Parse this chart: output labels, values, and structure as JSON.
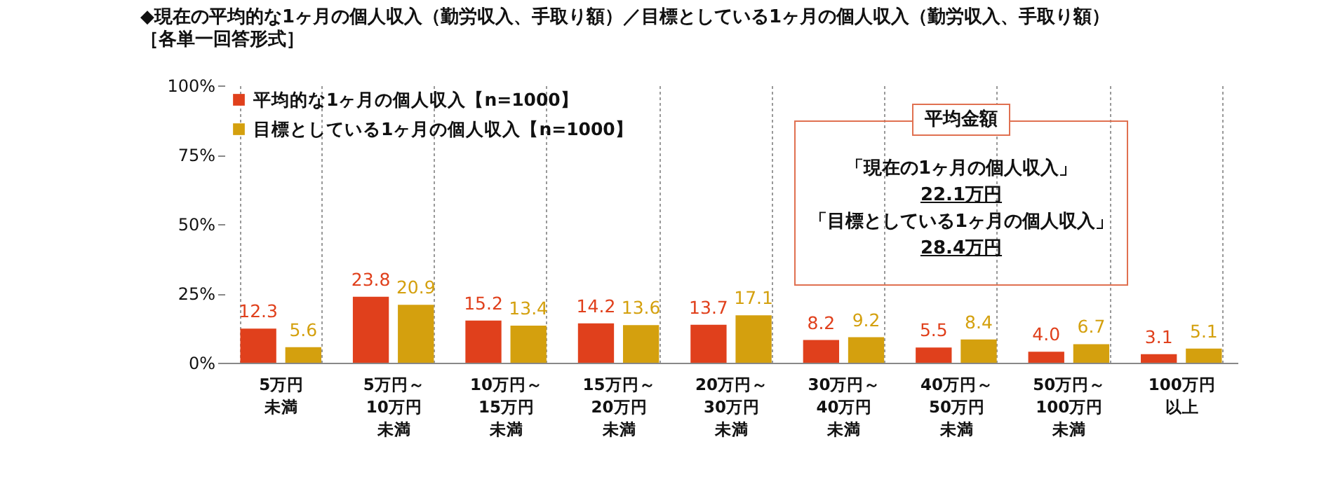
{
  "chart_data": {
    "type": "bar",
    "title": "◆現在の平均的な1ヶ月の個人収入（勤労収入、手取り額）／目標としている1ヶ月の個人収入（勤労収入、手取り額）",
    "subtitle": "［各単一回答形式］",
    "categories": [
      "5万円未満",
      "5万円～10万円未満",
      "10万円～15万円未満",
      "15万円～20万円未満",
      "20万円～30万円未満",
      "30万円～40万円未満",
      "40万円～50万円未満",
      "50万円～100万円未満",
      "100万円以上"
    ],
    "series": [
      {
        "name": "平均的な1ヶ月の個人収入【n=1000】",
        "color": "#e0401c",
        "values": [
          12.3,
          23.8,
          15.2,
          14.2,
          13.7,
          8.2,
          5.5,
          4.0,
          3.1
        ],
        "value_labels": [
          "12.3",
          "23.8",
          "15.2",
          "14.2",
          "13.7",
          "8.2",
          "5.5",
          "4.0",
          "3.1"
        ]
      },
      {
        "name": "目標としている1ヶ月の個人収入【n=1000】",
        "color": "#d4a00e",
        "values": [
          5.6,
          20.9,
          13.4,
          13.6,
          17.1,
          9.2,
          8.4,
          6.7,
          5.1
        ],
        "value_labels": [
          "5.6",
          "20.9",
          "13.4",
          "13.6",
          "17.1",
          "9.2",
          "8.4",
          "6.7",
          "5.1"
        ]
      }
    ],
    "ylim": [
      0,
      100
    ],
    "yticks": [
      {
        "value": 0,
        "label": "0%"
      },
      {
        "value": 25,
        "label": "25%"
      },
      {
        "value": 50,
        "label": "50%"
      },
      {
        "value": 75,
        "label": "75%"
      },
      {
        "value": 100,
        "label": "100%"
      }
    ],
    "grid": "x",
    "legend": "top left",
    "annotations": [
      "平均金額",
      "「現在の1ヶ月の個人収入」",
      "22.1万円",
      "「目標としている1ヶ月の個人収入」",
      "28.4万円"
    ]
  }
}
